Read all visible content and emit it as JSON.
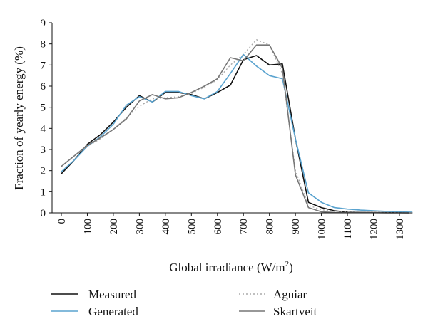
{
  "chart_data": {
    "type": "line",
    "xlabel": "Global irradiance (W/m",
    "xlabel_sup": "2",
    "xlabel_end": ")",
    "ylabel": "Fraction of yearly energy (%)",
    "xlim": [
      0,
      1350
    ],
    "ylim": [
      0,
      9
    ],
    "xticks": [
      "0",
      "100",
      "200",
      "300",
      "400",
      "500",
      "600",
      "700",
      "800",
      "900",
      "1000",
      "1100",
      "1200",
      "1300"
    ],
    "yticks": [
      "0",
      "1",
      "2",
      "3",
      "4",
      "5",
      "6",
      "7",
      "8",
      "9"
    ],
    "grid": false,
    "legend_placement": "bottom",
    "series": [
      {
        "name": "Measured",
        "color": "#111111",
        "dash": "",
        "x": [
          0,
          50,
          100,
          150,
          200,
          250,
          300,
          350,
          400,
          450,
          500,
          550,
          600,
          650,
          700,
          750,
          800,
          850,
          900,
          950,
          1000,
          1050,
          1100,
          1150,
          1200,
          1250,
          1300,
          1350
        ],
        "y": [
          1.85,
          2.5,
          3.25,
          3.7,
          4.3,
          5.0,
          5.55,
          5.25,
          5.7,
          5.7,
          5.6,
          5.4,
          5.7,
          6.05,
          7.25,
          7.45,
          7.0,
          7.05,
          3.5,
          0.5,
          0.25,
          0.1,
          0.03,
          0.02,
          0.02,
          0.01,
          0.01,
          0.0
        ]
      },
      {
        "name": "Generated",
        "color": "#5aa3cf",
        "dash": "",
        "x": [
          0,
          50,
          100,
          150,
          200,
          250,
          300,
          350,
          400,
          450,
          500,
          550,
          600,
          650,
          700,
          750,
          800,
          850,
          900,
          950,
          1000,
          1050,
          1100,
          1150,
          1200,
          1250,
          1300,
          1350
        ],
        "y": [
          1.95,
          2.5,
          3.15,
          3.6,
          4.2,
          5.1,
          5.5,
          5.25,
          5.75,
          5.75,
          5.55,
          5.4,
          5.75,
          6.6,
          7.5,
          6.95,
          6.5,
          6.35,
          3.5,
          0.95,
          0.5,
          0.25,
          0.18,
          0.13,
          0.1,
          0.07,
          0.05,
          0.03
        ]
      },
      {
        "name": "Aguiar",
        "color": "#aaaaaa",
        "dash": "2,3",
        "x": [
          0,
          50,
          100,
          150,
          200,
          250,
          300,
          350,
          400,
          450,
          500,
          550,
          600,
          650,
          700,
          750,
          800,
          850,
          900,
          950,
          1000,
          1050,
          1100,
          1150,
          1200,
          1250,
          1300,
          1350
        ],
        "y": [
          2.2,
          2.7,
          3.15,
          3.5,
          3.95,
          4.5,
          5.05,
          5.4,
          5.45,
          5.5,
          5.65,
          5.95,
          6.3,
          7.0,
          7.5,
          8.2,
          7.95,
          6.6,
          2.0,
          0.35,
          0.15,
          0.08,
          0.05,
          0.04,
          0.03,
          0.02,
          0.02,
          0.01
        ]
      },
      {
        "name": "Skartveit",
        "color": "#777777",
        "dash": "",
        "x": [
          0,
          50,
          100,
          150,
          200,
          250,
          300,
          350,
          400,
          450,
          500,
          550,
          600,
          650,
          700,
          750,
          800,
          850,
          900,
          950,
          1000,
          1050,
          1100,
          1150,
          1200,
          1250,
          1300,
          1350
        ],
        "y": [
          2.2,
          2.7,
          3.2,
          3.55,
          3.95,
          4.45,
          5.3,
          5.6,
          5.4,
          5.45,
          5.7,
          6.0,
          6.35,
          7.35,
          7.2,
          7.95,
          7.95,
          6.85,
          1.8,
          0.25,
          0.05,
          0.02,
          0.01,
          0.01,
          0.01,
          0.0,
          0.0,
          0.0
        ]
      }
    ]
  }
}
